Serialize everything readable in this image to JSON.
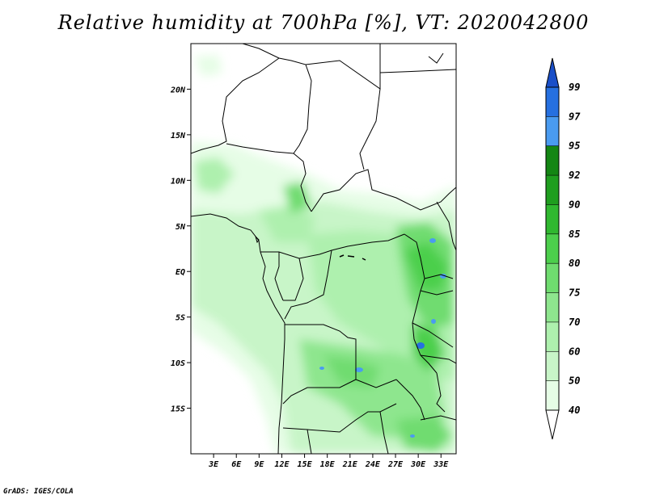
{
  "title": "Relative humidity at 700hPa [%], VT: 2020042800",
  "credit": "GrADS: IGES/COLA",
  "map": {
    "lon_labels": [
      "3E",
      "6E",
      "9E",
      "12E",
      "15E",
      "18E",
      "21E",
      "24E",
      "27E",
      "30E",
      "33E"
    ],
    "lon_values": [
      3,
      6,
      9,
      12,
      15,
      18,
      21,
      24,
      27,
      30,
      33
    ],
    "lat_labels": [
      "20N",
      "15N",
      "10N",
      "5N",
      "EQ",
      "5S",
      "10S",
      "15S"
    ],
    "lat_values": [
      20,
      15,
      10,
      5,
      0,
      -5,
      -10,
      -15
    ],
    "lon_range": [
      0,
      35
    ],
    "lat_range": [
      -20,
      25
    ]
  },
  "colorbar": {
    "levels": [
      "40",
      "50",
      "60",
      "70",
      "75",
      "80",
      "85",
      "90",
      "92",
      "95",
      "97",
      "99"
    ],
    "colors": [
      "#ffffff",
      "#e6fde6",
      "#c8f5c8",
      "#aef0ae",
      "#8ee68e",
      "#6fdc6f",
      "#4ccf4c",
      "#30b830",
      "#1f9e1f",
      "#148614",
      "#4a9bf0",
      "#2670e0",
      "#1a4fc8"
    ]
  }
}
